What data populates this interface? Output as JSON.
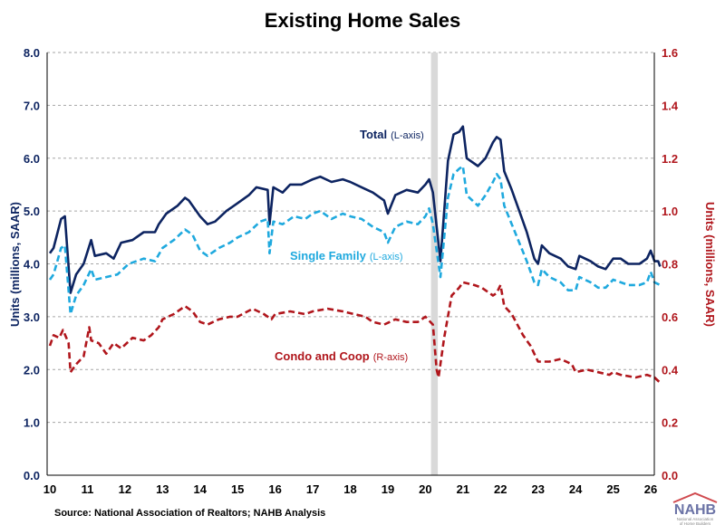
{
  "chart_data": {
    "type": "line",
    "title": "Existing Home Sales",
    "ylabel": "Units (millions, SAAR)",
    "ylabel_right": "Units (millions, SAAR)",
    "ylim": [
      0,
      8
    ],
    "ylim_right": [
      0,
      1.6
    ],
    "yticks": [
      "0.0",
      "1.0",
      "2.0",
      "3.0",
      "4.0",
      "5.0",
      "6.0",
      "7.0",
      "8.0"
    ],
    "yticks_right": [
      "0.0",
      "0.2",
      "0.4",
      "0.6",
      "0.8",
      "1.0",
      "1.2",
      "1.4",
      "1.6"
    ],
    "xlim": [
      10,
      26.25
    ],
    "xticks": [
      "10",
      "11",
      "12",
      "13",
      "14",
      "15",
      "16",
      "17",
      "18",
      "19",
      "20",
      "21",
      "22",
      "23",
      "24",
      "25",
      "26"
    ],
    "grid": true,
    "shaded_band": [
      20.15,
      20.33
    ],
    "colors": {
      "total": "#0d2461",
      "single_family": "#1fa9de",
      "condo": "#b0161c",
      "band": "#d9d9d9",
      "grid": "#a6a6a6"
    },
    "series": [
      {
        "name": "Total",
        "axis_note": "(L-axis)",
        "axis": "left",
        "style": "solid",
        "x": [
          10.0,
          10.1,
          10.3,
          10.4,
          10.55,
          10.7,
          10.9,
          11.1,
          11.2,
          11.5,
          11.7,
          11.9,
          12.2,
          12.5,
          12.8,
          12.9,
          13.1,
          13.4,
          13.6,
          13.7,
          14.0,
          14.2,
          14.4,
          14.7,
          15.0,
          15.3,
          15.5,
          15.8,
          15.85,
          15.95,
          16.2,
          16.4,
          16.7,
          17.0,
          17.2,
          17.5,
          17.8,
          18.0,
          18.3,
          18.6,
          18.9,
          19.0,
          19.2,
          19.5,
          19.8,
          20.0,
          20.1,
          20.2,
          20.4,
          20.6,
          20.75,
          20.9,
          21.0,
          21.1,
          21.4,
          21.6,
          21.8,
          21.9,
          22.0,
          22.1,
          22.3,
          22.5,
          22.7,
          22.9,
          23.0,
          23.1,
          23.3,
          23.6,
          23.8,
          24.0,
          24.1,
          24.4,
          24.6,
          24.8,
          25.0,
          25.2,
          25.4,
          25.7,
          25.9,
          26.0,
          26.1,
          26.2,
          26.25
        ],
        "y": [
          4.2,
          4.3,
          4.85,
          4.9,
          3.45,
          3.8,
          4.0,
          4.45,
          4.15,
          4.2,
          4.1,
          4.4,
          4.45,
          4.6,
          4.6,
          4.75,
          4.95,
          5.1,
          5.25,
          5.2,
          4.9,
          4.75,
          4.8,
          5.0,
          5.15,
          5.3,
          5.45,
          5.4,
          4.75,
          5.45,
          5.35,
          5.5,
          5.5,
          5.6,
          5.65,
          5.55,
          5.6,
          5.55,
          5.45,
          5.35,
          5.2,
          4.95,
          5.3,
          5.4,
          5.35,
          5.5,
          5.6,
          5.35,
          4.05,
          5.95,
          6.45,
          6.5,
          6.6,
          6.0,
          5.85,
          6.0,
          6.3,
          6.4,
          6.35,
          5.75,
          5.4,
          5.0,
          4.6,
          4.1,
          4.0,
          4.35,
          4.2,
          4.1,
          3.95,
          3.9,
          4.15,
          4.05,
          3.95,
          3.9,
          4.1,
          4.1,
          4.0,
          4.0,
          4.1,
          4.25,
          4.05,
          4.05,
          3.95
        ]
      },
      {
        "name": "Single Family",
        "axis_note": "(L-axis)",
        "axis": "left",
        "style": "dashed",
        "x": [
          10.0,
          10.1,
          10.3,
          10.4,
          10.55,
          10.7,
          10.9,
          11.1,
          11.2,
          11.5,
          11.8,
          12.1,
          12.5,
          12.8,
          13.0,
          13.3,
          13.6,
          13.8,
          14.0,
          14.2,
          14.5,
          14.8,
          15.0,
          15.3,
          15.6,
          15.8,
          15.85,
          15.95,
          16.2,
          16.5,
          16.8,
          17.0,
          17.2,
          17.5,
          17.8,
          18.0,
          18.3,
          18.6,
          18.9,
          19.0,
          19.2,
          19.5,
          19.8,
          20.0,
          20.1,
          20.2,
          20.4,
          20.6,
          20.75,
          20.9,
          21.0,
          21.1,
          21.4,
          21.6,
          21.8,
          21.9,
          22.0,
          22.1,
          22.3,
          22.5,
          22.7,
          22.9,
          23.0,
          23.1,
          23.3,
          23.6,
          23.8,
          24.0,
          24.1,
          24.4,
          24.6,
          24.8,
          25.0,
          25.2,
          25.4,
          25.7,
          25.9,
          26.0,
          26.1,
          26.25
        ],
        "y": [
          3.7,
          3.8,
          4.3,
          4.35,
          3.05,
          3.4,
          3.6,
          3.9,
          3.7,
          3.75,
          3.8,
          4.0,
          4.1,
          4.05,
          4.3,
          4.45,
          4.65,
          4.55,
          4.25,
          4.15,
          4.3,
          4.4,
          4.5,
          4.6,
          4.8,
          4.85,
          4.2,
          4.8,
          4.75,
          4.9,
          4.85,
          4.95,
          5.0,
          4.85,
          4.95,
          4.9,
          4.85,
          4.7,
          4.6,
          4.4,
          4.7,
          4.8,
          4.75,
          4.9,
          5.05,
          4.75,
          3.75,
          5.25,
          5.7,
          5.8,
          5.85,
          5.3,
          5.1,
          5.3,
          5.55,
          5.7,
          5.6,
          5.1,
          4.75,
          4.4,
          4.05,
          3.65,
          3.6,
          3.9,
          3.75,
          3.65,
          3.5,
          3.5,
          3.75,
          3.65,
          3.55,
          3.55,
          3.7,
          3.65,
          3.6,
          3.6,
          3.65,
          3.85,
          3.65,
          3.6
        ]
      },
      {
        "name": "Condo and Coop",
        "axis_note": "(R-axis)",
        "axis": "right",
        "style": "dashed",
        "x": [
          10.0,
          10.1,
          10.25,
          10.35,
          10.5,
          10.55,
          10.7,
          10.9,
          11.05,
          11.1,
          11.3,
          11.5,
          11.7,
          11.9,
          12.2,
          12.5,
          12.7,
          12.9,
          13.0,
          13.3,
          13.6,
          13.8,
          14.0,
          14.2,
          14.5,
          14.8,
          15.0,
          15.4,
          15.7,
          15.9,
          16.0,
          16.4,
          16.8,
          17.0,
          17.4,
          17.8,
          18.1,
          18.4,
          18.6,
          18.9,
          19.2,
          19.5,
          19.8,
          20.0,
          20.2,
          20.3,
          20.35,
          20.5,
          20.7,
          20.9,
          21.0,
          21.3,
          21.5,
          21.8,
          21.9,
          22.0,
          22.1,
          22.3,
          22.6,
          22.8,
          23.0,
          23.3,
          23.6,
          23.9,
          24.0,
          24.3,
          24.6,
          24.9,
          25.0,
          25.2,
          25.6,
          25.9,
          26.1,
          26.25
        ],
        "y": [
          0.49,
          0.53,
          0.52,
          0.55,
          0.5,
          0.39,
          0.42,
          0.45,
          0.56,
          0.51,
          0.5,
          0.46,
          0.5,
          0.48,
          0.52,
          0.51,
          0.53,
          0.56,
          0.59,
          0.61,
          0.64,
          0.62,
          0.58,
          0.57,
          0.59,
          0.6,
          0.6,
          0.63,
          0.61,
          0.59,
          0.61,
          0.62,
          0.61,
          0.62,
          0.63,
          0.62,
          0.61,
          0.6,
          0.58,
          0.57,
          0.59,
          0.58,
          0.58,
          0.6,
          0.57,
          0.4,
          0.37,
          0.52,
          0.68,
          0.71,
          0.73,
          0.72,
          0.71,
          0.68,
          0.69,
          0.72,
          0.64,
          0.61,
          0.53,
          0.49,
          0.43,
          0.43,
          0.44,
          0.42,
          0.39,
          0.4,
          0.39,
          0.38,
          0.39,
          0.38,
          0.37,
          0.38,
          0.37,
          0.35
        ]
      }
    ]
  },
  "source": "Source: National Association of Realtors; NAHB Analysis",
  "logo": {
    "text": "NAHB",
    "subtitle": "National Association of Home Builders"
  }
}
